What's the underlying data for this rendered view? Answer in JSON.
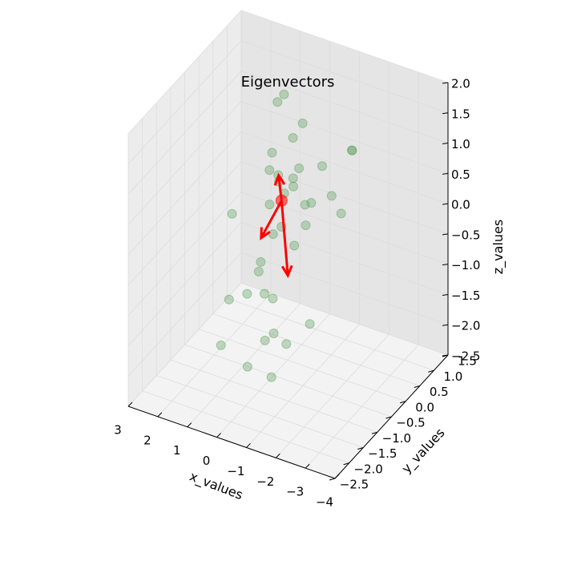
{
  "chart_data": {
    "type": "scatter3d",
    "title": "Eigenvectors",
    "xlabel": "x_values",
    "ylabel": "y_values",
    "zlabel": "z_values",
    "xlim": [
      -4,
      3
    ],
    "ylim": [
      -2.5,
      1.5
    ],
    "zlim": [
      -2.5,
      2.0
    ],
    "x_ticks": [
      "−4",
      "−3",
      "−2",
      "−1",
      "0",
      "1",
      "2",
      "3"
    ],
    "y_ticks": [
      "−2.5",
      "−2.0",
      "−1.5",
      "−1.0",
      "−0.5",
      "0.0",
      "0.5",
      "1.0",
      "1.5"
    ],
    "z_ticks": [
      "−2.5",
      "−2.0",
      "−1.5",
      "−1.0",
      "−0.5",
      "0.0",
      "0.5",
      "1.0",
      "1.5",
      "2.0"
    ],
    "grid": true,
    "point_color": "#5a9e5a",
    "vector_color": "#ff0000",
    "pane_color": "#f2f2f2",
    "mean_point": [
      0.2,
      0.0,
      0.1
    ],
    "points": [
      [
        -0.8,
        -0.3,
        1.7
      ],
      [
        0.5,
        0.4,
        1.6
      ],
      [
        1.2,
        0.9,
        1.1
      ],
      [
        -2.0,
        0.2,
        1.2
      ],
      [
        -1.7,
        0.5,
        1.0
      ],
      [
        0.1,
        0.3,
        1.0
      ],
      [
        -2.2,
        -0.4,
        0.5
      ],
      [
        -1.4,
        0.1,
        0.4
      ],
      [
        -0.6,
        0.6,
        0.5
      ],
      [
        -0.2,
        0.2,
        0.6
      ],
      [
        0.0,
        -0.3,
        0.6
      ],
      [
        1.0,
        0.5,
        0.5
      ],
      [
        -0.9,
        -0.1,
        0.3
      ],
      [
        -0.2,
        0.0,
        0.4
      ],
      [
        0.0,
        0.2,
        0.4
      ],
      [
        0.6,
        0.3,
        0.3
      ],
      [
        -1.0,
        -0.4,
        0.1
      ],
      [
        -0.5,
        0.1,
        0.1
      ],
      [
        0.3,
        0.2,
        0.1
      ],
      [
        0.7,
        0.1,
        -0.1
      ],
      [
        0.8,
        0.2,
        0.4
      ],
      [
        -0.9,
        -0.7,
        -0.1
      ],
      [
        1.3,
        -0.6,
        0.0
      ],
      [
        0.2,
        -0.3,
        -0.3
      ],
      [
        0.3,
        0.1,
        -0.4
      ],
      [
        0.4,
        -0.6,
        -0.8
      ],
      [
        -2.0,
        -1.3,
        -0.9
      ],
      [
        0.3,
        -0.5,
        -1.2
      ],
      [
        0.6,
        -0.8,
        -1.1
      ],
      [
        1.0,
        0.1,
        -1.1
      ],
      [
        -1.3,
        -1.4,
        -1.3
      ],
      [
        1.5,
        -0.5,
        -1.5
      ],
      [
        0.4,
        -0.1,
        -1.5
      ],
      [
        -0.3,
        -0.8,
        -1.6
      ],
      [
        -0.1,
        -0.9,
        -1.7
      ],
      [
        1.2,
        -1.1,
        -1.9
      ],
      [
        -0.7,
        -1.3,
        -2.0
      ],
      [
        0.3,
        -1.1,
        -2.1
      ]
    ],
    "vectors": [
      [
        0.1,
        0.0,
        0.4
      ],
      [
        0.5,
        -0.2,
        -0.6
      ],
      [
        -0.5,
        -0.3,
        -1.0
      ]
    ]
  }
}
